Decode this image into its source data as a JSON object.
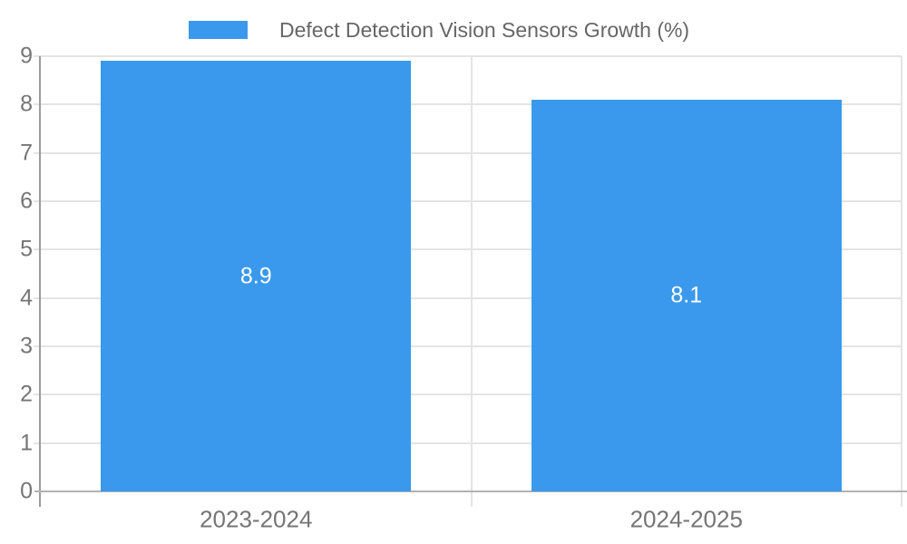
{
  "chart_data": {
    "type": "bar",
    "title": "",
    "legend": {
      "label": "Defect Detection Vision Sensors Growth (%)"
    },
    "categories": [
      "2023-2024",
      "2024-2025"
    ],
    "series": [
      {
        "name": "Defect Detection Vision Sensors Growth (%)",
        "values": [
          8.9,
          8.1
        ]
      }
    ],
    "value_labels": [
      "8.9",
      "8.1"
    ],
    "xlabel": "",
    "ylabel": "",
    "ylim": [
      0,
      9
    ],
    "y_tick_step": 1,
    "y_tick_labels": [
      "0",
      "1",
      "2",
      "3",
      "4",
      "5",
      "6",
      "7",
      "8",
      "9"
    ],
    "grid": true,
    "legend_position": "top-center",
    "colors": {
      "bar": "#3a99ec",
      "grid_line": "#e4e4e4",
      "y_axis_line": "#9b9b9b",
      "x_axis_line": "#b2b2b2",
      "axis_label": "#757575",
      "legend_text": "#666666",
      "value_label": "#ffffff",
      "background": "#ffffff"
    }
  }
}
